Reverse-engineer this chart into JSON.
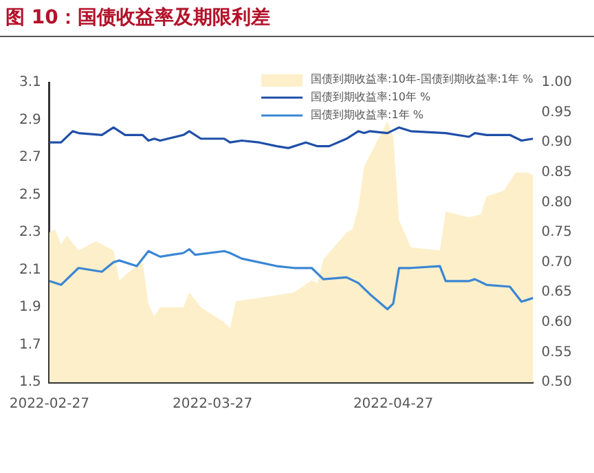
{
  "chart_data": {
    "type": "line",
    "title": "图 10：国债收益率及期限利差",
    "xlim": [
      "2022-02-27",
      "2022-05-21"
    ],
    "xticks": [
      "2022-02-27",
      "2022-03-27",
      "2022-04-27"
    ],
    "ylim": [
      1.5,
      3.1
    ],
    "yticks": [
      1.5,
      1.7,
      1.9,
      2.1,
      2.3,
      2.5,
      2.7,
      2.9,
      3.1
    ],
    "y2lim": [
      0.5,
      1.0
    ],
    "y2ticks": [
      {
        "value": 0.5,
        "label": "0.50"
      },
      0.55,
      {
        "value": 0.6,
        "label": "0.60"
      },
      0.65,
      {
        "value": 0.7,
        "label": "0.70"
      },
      0.75,
      {
        "value": 0.8,
        "label": "0.80"
      },
      0.85,
      {
        "value": 0.9,
        "label": "0.90"
      },
      0.95,
      {
        "value": 1.0,
        "label": "1.00"
      }
    ],
    "legend": "top right",
    "grid": false,
    "series": [
      {
        "name": "国债到期收益率:10年-国债到期收益率:1年 %",
        "type": "area",
        "axis": "y2",
        "color": "#fdefc9",
        "x": [
          "2022-02-27",
          "2022-02-28",
          "2022-03-01",
          "2022-03-02",
          "2022-03-04",
          "2022-03-07",
          "2022-03-09",
          "2022-03-10",
          "2022-03-11",
          "2022-03-14",
          "2022-03-15",
          "2022-03-16",
          "2022-03-17",
          "2022-03-18",
          "2022-03-22",
          "2022-03-23",
          "2022-03-25",
          "2022-03-29",
          "2022-03-30",
          "2022-03-31",
          "2022-04-07",
          "2022-04-10",
          "2022-04-13",
          "2022-04-14",
          "2022-04-15",
          "2022-04-19",
          "2022-04-20",
          "2022-04-21",
          "2022-04-22",
          "2022-04-26",
          "2022-04-27",
          "2022-04-28",
          "2022-04-30",
          "2022-05-05",
          "2022-05-06",
          "2022-05-10",
          "2022-05-12",
          "2022-05-13",
          "2022-05-16",
          "2022-05-18",
          "2022-05-20",
          "2022-05-21"
        ],
        "values": [
          0.75,
          0.755,
          0.73,
          0.745,
          0.72,
          0.735,
          0.725,
          0.72,
          0.67,
          0.695,
          0.7,
          0.63,
          0.61,
          0.625,
          0.625,
          0.65,
          0.625,
          0.6,
          0.59,
          0.635,
          0.645,
          0.65,
          0.67,
          0.665,
          0.705,
          0.75,
          0.755,
          0.79,
          0.86,
          0.935,
          0.91,
          0.77,
          0.725,
          0.72,
          0.785,
          0.775,
          0.78,
          0.81,
          0.82,
          0.85,
          0.85,
          0.845
        ]
      },
      {
        "name": "国债到期收益率:10年 %",
        "type": "line",
        "axis": "y",
        "color": "#1f4fa8",
        "x": [
          "2022-02-27",
          "2022-03-01",
          "2022-03-03",
          "2022-03-04",
          "2022-03-08",
          "2022-03-10",
          "2022-03-12",
          "2022-03-15",
          "2022-03-16",
          "2022-03-17",
          "2022-03-18",
          "2022-03-22",
          "2022-03-23",
          "2022-03-25",
          "2022-03-29",
          "2022-03-30",
          "2022-04-01",
          "2022-04-04",
          "2022-04-07",
          "2022-04-09",
          "2022-04-12",
          "2022-04-14",
          "2022-04-16",
          "2022-04-19",
          "2022-04-21",
          "2022-04-22",
          "2022-04-23",
          "2022-04-26",
          "2022-04-28",
          "2022-04-30",
          "2022-05-06",
          "2022-05-10",
          "2022-05-11",
          "2022-05-13",
          "2022-05-17",
          "2022-05-19",
          "2022-05-21"
        ],
        "values": [
          2.78,
          2.78,
          2.84,
          2.83,
          2.82,
          2.86,
          2.82,
          2.82,
          2.79,
          2.8,
          2.79,
          2.82,
          2.84,
          2.8,
          2.8,
          2.78,
          2.79,
          2.78,
          2.76,
          2.75,
          2.78,
          2.76,
          2.76,
          2.8,
          2.84,
          2.83,
          2.84,
          2.83,
          2.86,
          2.84,
          2.83,
          2.81,
          2.83,
          2.82,
          2.82,
          2.79,
          2.8
        ]
      },
      {
        "name": "国债到期收益率:1年 %",
        "type": "line",
        "axis": "y",
        "color": "#3a86d4",
        "x": [
          "2022-02-27",
          "2022-03-01",
          "2022-03-04",
          "2022-03-08",
          "2022-03-10",
          "2022-03-11",
          "2022-03-14",
          "2022-03-16",
          "2022-03-18",
          "2022-03-22",
          "2022-03-23",
          "2022-03-24",
          "2022-03-29",
          "2022-03-30",
          "2022-04-01",
          "2022-04-07",
          "2022-04-10",
          "2022-04-13",
          "2022-04-15",
          "2022-04-19",
          "2022-04-21",
          "2022-04-23",
          "2022-04-26",
          "2022-04-27",
          "2022-04-28",
          "2022-04-30",
          "2022-05-05",
          "2022-05-06",
          "2022-05-10",
          "2022-05-11",
          "2022-05-13",
          "2022-05-17",
          "2022-05-19",
          "2022-05-21"
        ],
        "values": [
          2.04,
          2.02,
          2.11,
          2.09,
          2.14,
          2.15,
          2.12,
          2.2,
          2.17,
          2.19,
          2.21,
          2.18,
          2.2,
          2.19,
          2.16,
          2.12,
          2.11,
          2.11,
          2.05,
          2.06,
          2.03,
          1.97,
          1.89,
          1.92,
          2.11,
          2.11,
          2.12,
          2.04,
          2.04,
          2.05,
          2.02,
          2.01,
          1.93,
          1.95
        ]
      }
    ]
  }
}
